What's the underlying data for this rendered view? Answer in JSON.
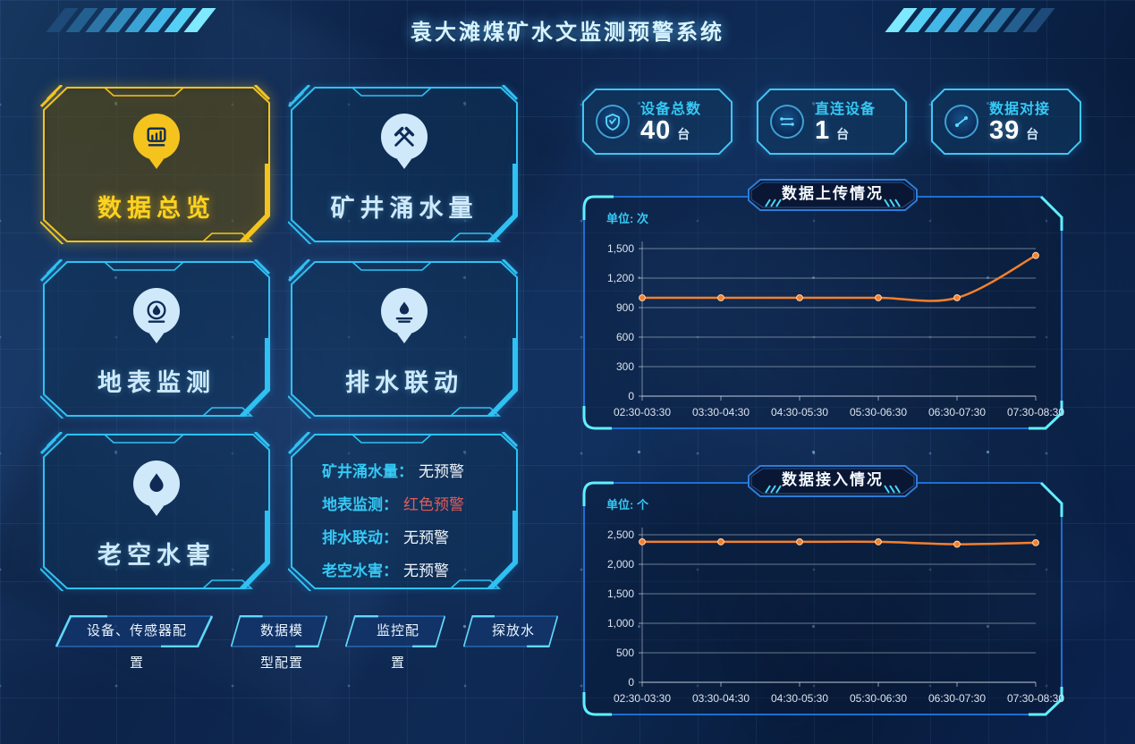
{
  "app": {
    "title": "袁大滩煤矿水文监测预警系统"
  },
  "colors": {
    "accent_cyan": "#35c9f5",
    "active_yellow": "#ffd21e",
    "alert_red": "#e05c5c",
    "line_orange": "#f5802c",
    "panel_border_blue": "#1d6fd2"
  },
  "nav_tiles": [
    {
      "label": "数据总览",
      "icon": "data-overview-icon",
      "active": true
    },
    {
      "label": "矿井涌水量",
      "icon": "mine-inflow-icon",
      "active": false
    },
    {
      "label": "地表监测",
      "icon": "surface-monitor-icon",
      "active": false
    },
    {
      "label": "排水联动",
      "icon": "drainage-linkage-icon",
      "active": false
    },
    {
      "label": "老空水害",
      "icon": "goaf-water-icon",
      "active": false
    }
  ],
  "alert_panel": {
    "items": [
      {
        "label": "矿井涌水量：",
        "value": "无预警",
        "level": "none"
      },
      {
        "label": "地表监测：",
        "value": "红色预警",
        "level": "red"
      },
      {
        "label": "排水联动：",
        "value": "无预警",
        "level": "none"
      },
      {
        "label": "老空水害：",
        "value": "无预警",
        "level": "none"
      }
    ]
  },
  "config_buttons": [
    {
      "label": "设备、传感器配置"
    },
    {
      "label": "数据模型配置"
    },
    {
      "label": "监控配置"
    },
    {
      "label": "探放水"
    }
  ],
  "stats": [
    {
      "label": "设备总数",
      "value": "40",
      "unit": "台",
      "icon": "shield-check-icon"
    },
    {
      "label": "直连设备",
      "value": "1",
      "unit": "台",
      "icon": "direct-link-icon"
    },
    {
      "label": "数据对接",
      "value": "39",
      "unit": "台",
      "icon": "data-dock-icon"
    }
  ],
  "chart_data": [
    {
      "type": "line",
      "title": "数据上传情况",
      "unit_label": "单位: 次",
      "categories": [
        "02:30-03:30",
        "03:30-04:30",
        "04:30-05:30",
        "05:30-06:30",
        "06:30-07:30",
        "07:30-08:30"
      ],
      "values": [
        1000,
        1000,
        1000,
        1000,
        1000,
        1430
      ],
      "ylim": [
        0,
        1500
      ],
      "ytick_labels": [
        "0",
        "300",
        "600",
        "900",
        "1,200",
        "1,500"
      ],
      "line_color": "#f5802c",
      "smooth": true,
      "grid": true,
      "legend": "none"
    },
    {
      "type": "line",
      "title": "数据接入情况",
      "unit_label": "单位: 个",
      "categories": [
        "02:30-03:30",
        "03:30-04:30",
        "04:30-05:30",
        "05:30-06:30",
        "06:30-07:30",
        "07:30-08:30"
      ],
      "values": [
        2380,
        2380,
        2380,
        2380,
        2340,
        2365
      ],
      "ylim": [
        0,
        2500
      ],
      "ytick_labels": [
        "0",
        "500",
        "1,000",
        "1,500",
        "2,000",
        "2,500"
      ],
      "line_color": "#f5802c",
      "smooth": true,
      "grid": true,
      "legend": "none"
    }
  ]
}
